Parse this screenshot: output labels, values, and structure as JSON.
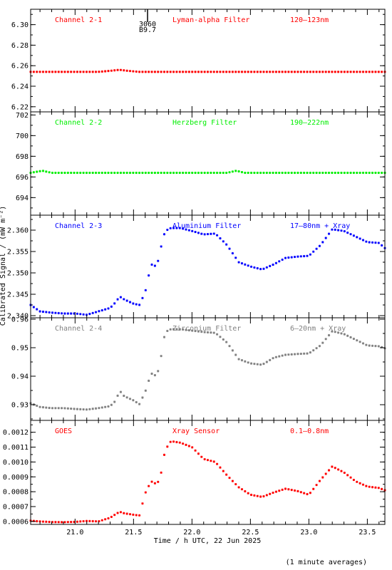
{
  "chart_data": {
    "type": "scatter",
    "xlabel": "Time / h UTC, 22 Jun 2025",
    "ylabel": "Calibrated Signal / (mW m⁻²)",
    "footnote": "(1 minute averages)",
    "xlim": [
      20.62,
      23.65
    ],
    "xticks": [
      "21.0",
      "21.5",
      "22.0",
      "22.5",
      "23.0",
      "23.5"
    ],
    "annotation": {
      "x": 21.62,
      "lines": [
        "3060",
        "B9.7"
      ]
    },
    "panels": [
      {
        "name": "Channel 2-1",
        "filter": "Lyman-alpha Filter",
        "band": "120–123nm",
        "color": "#ff0000",
        "ylim": [
          6.215,
          6.315
        ],
        "yticks": [
          "6.22",
          "6.24",
          "6.26",
          "6.28",
          "6.30"
        ],
        "x": [
          20.62,
          21.0,
          21.2,
          21.3,
          21.38,
          21.45,
          21.55,
          22.0,
          22.5,
          23.0,
          23.5,
          23.65
        ],
        "y": [
          6.254,
          6.254,
          6.254,
          6.255,
          6.256,
          6.255,
          6.254,
          6.254,
          6.254,
          6.254,
          6.254,
          6.254
        ]
      },
      {
        "name": "Channel 2-2",
        "filter": "Herzberg Filter",
        "band": "190–222nm",
        "color": "#00ee00",
        "ylim": [
          692.3,
          702.3
        ],
        "yticks": [
          "694",
          "696",
          "698",
          "700",
          "702"
        ],
        "x": [
          20.62,
          20.72,
          20.8,
          21.5,
          22.0,
          22.3,
          22.38,
          22.45,
          23.0,
          23.65
        ],
        "y": [
          696.4,
          696.6,
          696.4,
          696.4,
          696.4,
          696.4,
          696.6,
          696.4,
          696.4,
          696.4
        ]
      },
      {
        "name": "Channel 2-3",
        "filter": "Aluminium Filter",
        "band": "17–80nm + Xray",
        "color": "#0000ff",
        "ylim": [
          2.3395,
          2.3635
        ],
        "yticks": [
          "2.340",
          "2.345",
          "2.350",
          "2.355",
          "2.360"
        ],
        "x": [
          20.62,
          20.7,
          20.8,
          20.9,
          21.0,
          21.1,
          21.2,
          21.3,
          21.35,
          21.38,
          21.42,
          21.5,
          21.55,
          21.6,
          21.65,
          21.7,
          21.73,
          21.77,
          21.82,
          21.9,
          22.0,
          22.1,
          22.2,
          22.3,
          22.4,
          22.5,
          22.6,
          22.7,
          22.8,
          22.9,
          23.0,
          23.1,
          23.2,
          23.3,
          23.4,
          23.5,
          23.6,
          23.65
        ],
        "y": [
          2.3425,
          2.341,
          2.3407,
          2.3405,
          2.3405,
          2.3402,
          2.341,
          2.3418,
          2.3432,
          2.3445,
          2.3438,
          2.3428,
          2.3425,
          2.3455,
          2.352,
          2.3515,
          2.3555,
          2.3598,
          2.3605,
          2.3605,
          2.3598,
          2.359,
          2.3592,
          2.3565,
          2.3525,
          2.3515,
          2.3508,
          2.352,
          2.3535,
          2.3538,
          2.354,
          2.3565,
          2.3602,
          2.3598,
          2.3585,
          2.3572,
          2.357,
          2.3558
        ]
      },
      {
        "name": "Channel 2-4",
        "filter": "Zirconium Filter",
        "band": "6–20nm + Xray",
        "color": "#808080",
        "ylim": [
          0.9245,
          0.9605
        ],
        "yticks": [
          "0.93",
          "0.94",
          "0.95",
          "0.96"
        ],
        "x": [
          20.62,
          20.7,
          20.8,
          20.9,
          21.0,
          21.1,
          21.2,
          21.3,
          21.35,
          21.38,
          21.42,
          21.5,
          21.55,
          21.6,
          21.65,
          21.7,
          21.73,
          21.77,
          21.82,
          21.9,
          22.0,
          22.1,
          22.2,
          22.3,
          22.4,
          22.5,
          22.6,
          22.7,
          22.8,
          22.9,
          23.0,
          23.1,
          23.2,
          23.3,
          23.4,
          23.5,
          23.6,
          23.65
        ],
        "y": [
          0.9305,
          0.9292,
          0.9288,
          0.9288,
          0.9285,
          0.9283,
          0.9288,
          0.9295,
          0.9315,
          0.935,
          0.933,
          0.9315,
          0.9302,
          0.9345,
          0.941,
          0.94,
          0.9455,
          0.9555,
          0.9565,
          0.9565,
          0.956,
          0.9555,
          0.9552,
          0.9518,
          0.946,
          0.9445,
          0.944,
          0.9465,
          0.9475,
          0.9478,
          0.948,
          0.9508,
          0.9558,
          0.9548,
          0.9528,
          0.9508,
          0.9505,
          0.9498
        ]
      },
      {
        "name": "GOES",
        "filter": "Xray Sensor",
        "band": "0.1–0.8nm",
        "color": "#ff0000",
        "ylim": [
          0.00058,
          0.00128
        ],
        "yticks": [
          "0.0006",
          "0.0007",
          "0.0008",
          "0.0009",
          "0.0010",
          "0.0011",
          "0.0012"
        ],
        "x": [
          20.62,
          20.7,
          20.8,
          20.9,
          21.0,
          21.1,
          21.2,
          21.3,
          21.35,
          21.38,
          21.42,
          21.5,
          21.55,
          21.6,
          21.65,
          21.7,
          21.73,
          21.77,
          21.82,
          21.9,
          22.0,
          22.1,
          22.2,
          22.3,
          22.4,
          22.5,
          22.6,
          22.7,
          22.8,
          22.9,
          23.0,
          23.1,
          23.2,
          23.3,
          23.4,
          23.5,
          23.6,
          23.65
        ],
        "y": [
          0.000605,
          0.0006,
          0.000596,
          0.000595,
          0.000597,
          0.000603,
          0.0006,
          0.000625,
          0.00065,
          0.000665,
          0.000655,
          0.000645,
          0.00064,
          0.00079,
          0.00087,
          0.00085,
          0.0009,
          0.00108,
          0.00114,
          0.00113,
          0.0011,
          0.00102,
          0.001,
          0.00091,
          0.00083,
          0.00078,
          0.000765,
          0.000795,
          0.00082,
          0.000805,
          0.00078,
          0.00088,
          0.00097,
          0.00093,
          0.00087,
          0.000835,
          0.000825,
          0.00081
        ]
      }
    ]
  }
}
